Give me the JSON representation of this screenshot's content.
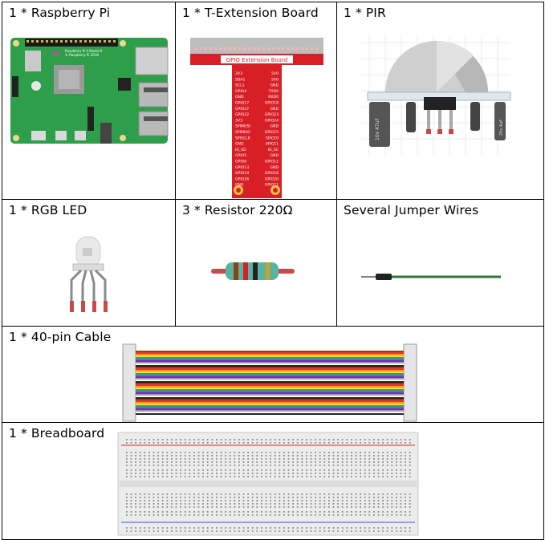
{
  "parts": {
    "raspberry_pi": {
      "label": "1 * Raspberry Pi",
      "board_text_1": "Raspberry Pi 4 Model B",
      "board_text_2": "© Raspberry Pi 2018"
    },
    "t_extension": {
      "label": "1 * T-Extension Board",
      "title": "GPIO Extension Board",
      "pins_left": [
        "3V3",
        "SDA1",
        "SCL1",
        "GPIO4",
        "GND",
        "GPIO17",
        "GPIO27",
        "GPIO22",
        "3V3",
        "SPIMOSI",
        "SPIMISO",
        "SPISCLK",
        "GND",
        "ID_SD",
        "GPIO5",
        "GPIO6",
        "GPIO13",
        "GPIO19",
        "GPIO26",
        "GND"
      ],
      "pins_right": [
        "5V0",
        "5V0",
        "GND",
        "TXD0",
        "RXD0",
        "GPIO18",
        "GND",
        "GPIO23",
        "GPIO24",
        "GND",
        "GPIO25",
        "SPICE0",
        "SPICE1",
        "ID_SC",
        "GND",
        "GPIO12",
        "GND",
        "GPIO16",
        "GPIO20",
        "GPIO21"
      ]
    },
    "pir": {
      "label": "1 * PIR",
      "cap_text_1": "10v 47uF",
      "cap_text_2": "25v 4uF"
    },
    "rgb_led": {
      "label": "1 * RGB LED"
    },
    "resistor": {
      "label": "3 * Resistor 220Ω"
    },
    "jumper_wires": {
      "label": "Several Jumper Wires"
    },
    "cable": {
      "label": "1 * 40-pin Cable"
    },
    "breadboard": {
      "label": "1 * Breadboard"
    }
  },
  "colors": {
    "pi_board": "#2f9e4a",
    "extension_red": "#d81f26",
    "led_body": "#e9e9e9",
    "jumper_green": "#2d7a3a"
  },
  "cable_stripe_colors": [
    "#8B4513",
    "#e53935",
    "#ff9800",
    "#fdd835",
    "#43a047",
    "#1e88e5",
    "#8e24aa",
    "#9e9e9e",
    "#fafafa",
    "#222222"
  ]
}
